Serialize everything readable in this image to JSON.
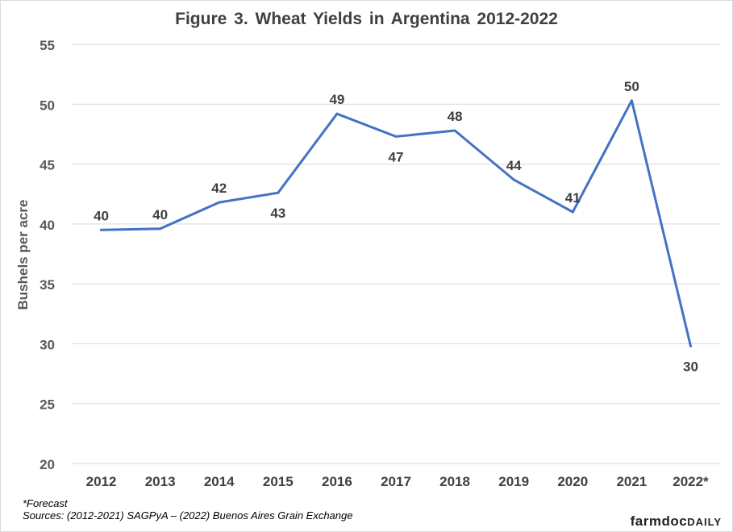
{
  "chart_data": {
    "type": "line",
    "title": "Figure  3. Wheat Yields  in Argentina  2012-2022",
    "ylabel": "Bushels per acre",
    "xlabel": "",
    "ylim": [
      20,
      55
    ],
    "yticks": [
      20,
      25,
      30,
      35,
      40,
      45,
      50,
      55
    ],
    "grid": true,
    "categories": [
      "2012",
      "2013",
      "2014",
      "2015",
      "2016",
      "2017",
      "2018",
      "2019",
      "2020",
      "2021",
      "2022*"
    ],
    "series": [
      {
        "values": [
          39.5,
          39.6,
          41.8,
          42.6,
          49.2,
          47.3,
          47.8,
          43.7,
          41.0,
          50.3,
          29.8
        ],
        "labels": [
          "40",
          "40",
          "42",
          "43",
          "49",
          "47",
          "48",
          "44",
          "41",
          "50",
          "30"
        ],
        "label_positions": [
          "above",
          "above",
          "above",
          "below",
          "above",
          "below",
          "above",
          "above",
          "above",
          "above",
          "below"
        ],
        "color": "#4472c4"
      }
    ]
  },
  "footnotes": {
    "forecast": "*Forecast",
    "sources": "Sources: (2012-2021) SAGPyA – (2022) Buenos Aires Grain Exchange"
  },
  "brand": {
    "part1": "farmdoc",
    "part2": "DAILY"
  }
}
